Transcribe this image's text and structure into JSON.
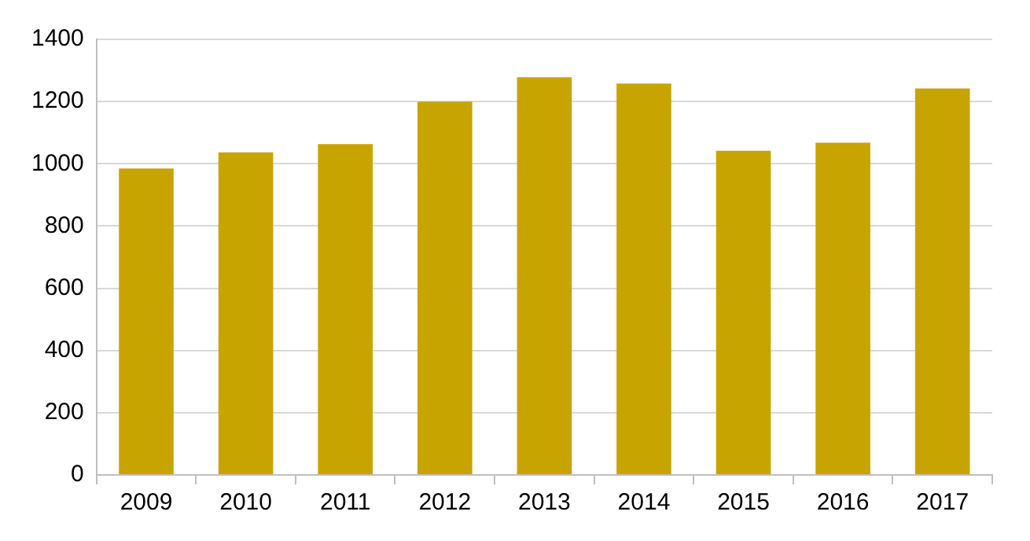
{
  "chart_data": {
    "type": "bar",
    "categories": [
      "2009",
      "2010",
      "2011",
      "2012",
      "2013",
      "2014",
      "2015",
      "2016",
      "2017"
    ],
    "values": [
      985,
      1037,
      1063,
      1200,
      1278,
      1258,
      1042,
      1068,
      1242
    ],
    "color": "#c8a400",
    "ylim": [
      0,
      1400
    ],
    "yticks": [
      0,
      200,
      400,
      600,
      800,
      1000,
      1200,
      1400
    ],
    "grid": "y"
  }
}
